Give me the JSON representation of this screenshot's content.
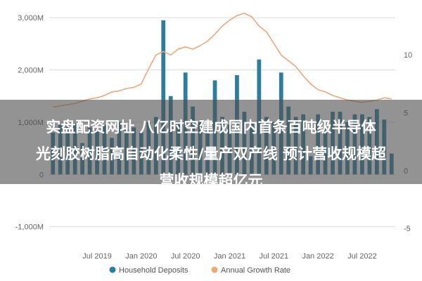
{
  "overlay": {
    "line1": "实盘配资网址 八亿时空建成国内首条百吨级半导体",
    "line2": "光刻胶树脂高自动化柔性/量产双产线 预计营收规模超",
    "line3": "营收规模超亿元"
  },
  "colors": {
    "bars": "#2e7d9a",
    "line": "#f0a878",
    "grid": "#dddddd",
    "axis_text": "#666666"
  },
  "chart_data": {
    "type": "bar",
    "title": "",
    "xlabel": "",
    "ylabel": "",
    "y_left": {
      "ticks": [
        -1000,
        0,
        1000,
        2000,
        3000
      ],
      "tick_labels": [
        "-1,000M",
        "0",
        "1,000M",
        "2,000M",
        "3,000M"
      ],
      "range": [
        -1300,
        3150
      ]
    },
    "y_right": {
      "ticks": [
        -5,
        0,
        5,
        10
      ],
      "tick_labels": [
        "-5",
        "0",
        "5",
        "10"
      ],
      "range": [
        -6.2,
        13.9
      ]
    },
    "x": {
      "tick_labels": [
        "Jul 2019",
        "Jan 2020",
        "Jul 2020",
        "Jan 2021",
        "Jul 2021",
        "Jan 2022",
        "Jul 2022"
      ],
      "start": "2019-01",
      "end": "2022-11",
      "months_count": 47
    },
    "legend": {
      "position": "bottom"
    },
    "grid": true,
    "series": [
      {
        "name": "Household Deposits",
        "type": "bar",
        "values": [
          800,
          950,
          1000,
          980,
          600,
          900,
          850,
          950,
          700,
          1000,
          850,
          900,
          800,
          1000,
          1100,
          2950,
          1500,
          1000,
          1950,
          1300,
          1000,
          950,
          1800,
          1100,
          950,
          1900,
          1200,
          1000,
          2200,
          1100,
          1000,
          1950,
          1300,
          1100,
          1150,
          350,
          1150,
          900,
          1200,
          1200,
          1000,
          1150,
          1150,
          1100,
          1250,
          1050,
          400
        ]
      },
      {
        "name": "Annual Growth Rate",
        "type": "line",
        "values": [
          5.5,
          5.6,
          5.7,
          5.8,
          6.0,
          6.2,
          6.3,
          6.5,
          6.8,
          6.9,
          7.1,
          7.2,
          7.5,
          8.8,
          10.0,
          10.3,
          10.0,
          10.5,
          10.7,
          10.5,
          10.8,
          11.2,
          11.8,
          12.5,
          13.0,
          13.4,
          13.6,
          13.3,
          12.5,
          12.0,
          11.0,
          10.0,
          9.5,
          9.0,
          8.2,
          7.5,
          7.0,
          6.8,
          6.5,
          6.3,
          6.1,
          6.0,
          5.9,
          6.0,
          6.1,
          6.3,
          6.2
        ]
      }
    ]
  }
}
